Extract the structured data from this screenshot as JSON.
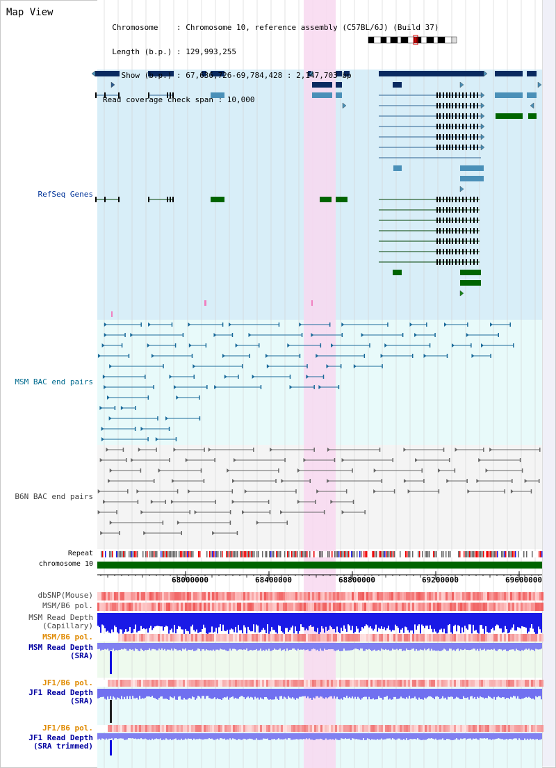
{
  "header": {
    "title": "Map View",
    "info_lines": [
      "  Chromosome    : Chromosome 10, reference assembly (C57BL/6J) (Build 37)",
      "  Length (b.p.) : 129,993,255",
      "    Show (b.p.) : 67,636,726-69,784,428 : 2,147,703 bp",
      "Read coverage check span : 10,000"
    ]
  },
  "tracks": {
    "refseq": "RefSeq Genes",
    "msm_bac": "MSM BAC end pairs",
    "b6n_bac": "B6N BAC end pairs",
    "repeat": "Repeat",
    "chromosome": "chromosome 10",
    "dbsnp": "dbSNP(Mouse)",
    "msm_b6_pol_1": "MSM/B6 pol.",
    "msm_read_depth_cap": "MSM Read Depth\n(Capillary)",
    "msm_b6_pol_2": "MSM/B6 pol.",
    "msm_read_depth_sra": "MSM Read Depth\n(SRA)",
    "jf1_b6_pol_1": "JF1/B6 pol.",
    "jf1_read_depth_sra": "JF1 Read Depth\n(SRA)",
    "jf1_b6_pol_2": "JF1/B6 pol.",
    "jf1_read_depth_trim": "JF1 Read Depth\n(SRA trimmed)"
  },
  "axis": {
    "ticks": [
      "68000000",
      "68400000",
      "68800000",
      "69200000",
      "69600000"
    ]
  },
  "colors": {
    "highlight": "#f8d8f0",
    "refseq_bg": "#d8eef8",
    "bac_bg": "#e8fafa",
    "b6n_bg": "#f4f4f4",
    "gene_dark": "#0a2a60",
    "gene_mid": "#4a90b8",
    "gene_green": "#006400",
    "depth_blue": "#1a1ae6",
    "depth_violet": "#7070f0"
  }
}
